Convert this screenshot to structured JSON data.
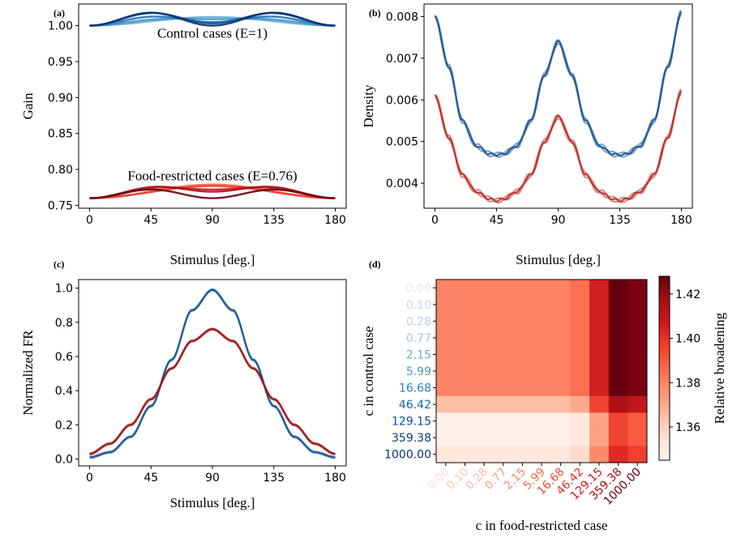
{
  "panel_labels": [
    "(a)",
    "(b)",
    "(c)",
    "(d)"
  ],
  "chart_data": [
    {
      "id": "a",
      "type": "line",
      "xlabel": "Stimulus [deg.]",
      "ylabel": "Gain",
      "xlim": [
        -8,
        188
      ],
      "ylim": [
        0.746,
        1.03
      ],
      "xticks": [
        0,
        45,
        90,
        135,
        180
      ],
      "yticks": [
        0.75,
        0.8,
        0.85,
        0.9,
        0.95,
        1.0
      ],
      "ytick_labels": [
        "0.75",
        "0.80",
        "0.85",
        "0.90",
        "0.95",
        "1.00"
      ],
      "annotations": [
        {
          "text": "Control cases (E=1)",
          "x": 90,
          "y": 0.983
        },
        {
          "text": "Food-restricted cases (E=0.76)",
          "x": 90,
          "y": 0.785
        }
      ],
      "grid": false,
      "groups": [
        {
          "base": 1.0,
          "colors": [
            "#6baed6",
            "#4292c6",
            "#2171b5",
            "#08519c",
            "#08306b"
          ],
          "curves": [
            [
              0.012,
              0.0
            ],
            [
              0.009,
              0.004
            ],
            [
              0.005,
              0.01
            ],
            [
              0.003,
              0.016
            ],
            [
              0.0,
              0.018
            ]
          ]
        },
        {
          "base": 0.76,
          "colors": [
            "#fb6a4a",
            "#ef3b2c",
            "#cb181d",
            "#a50f15",
            "#67000d"
          ],
          "curves": [
            [
              0.019,
              0.0
            ],
            [
              0.017,
              0.0
            ],
            [
              0.012,
              0.008
            ],
            [
              0.009,
              0.011
            ],
            [
              0.0,
              0.012
            ]
          ]
        }
      ]
    },
    {
      "id": "b",
      "type": "line",
      "xlabel": "Stimulus [deg.]",
      "ylabel": "Density",
      "xlim": [
        -8,
        188
      ],
      "ylim": [
        0.0034,
        0.0083
      ],
      "xticks": [
        0,
        45,
        90,
        135,
        180
      ],
      "yticks": [
        0.004,
        0.005,
        0.006,
        0.007,
        0.008
      ],
      "ytick_labels": [
        "0.004",
        "0.005",
        "0.006",
        "0.007",
        "0.008"
      ],
      "grid": false,
      "series": [
        {
          "group": "control",
          "color": "#1f5a96",
          "x": [
            0,
            10,
            20,
            30,
            40,
            45,
            50,
            60,
            70,
            80,
            90,
            100,
            110,
            120,
            130,
            135,
            140,
            150,
            160,
            170,
            180
          ],
          "values": [
            0.008,
            0.0068,
            0.0055,
            0.0049,
            0.0047,
            0.00468,
            0.0047,
            0.0049,
            0.0055,
            0.0066,
            0.0074,
            0.0066,
            0.0055,
            0.0049,
            0.0047,
            0.00468,
            0.0047,
            0.0049,
            0.0055,
            0.0068,
            0.0081
          ]
        },
        {
          "group": "food-restricted",
          "color": "#c0312a",
          "x": [
            0,
            10,
            20,
            30,
            40,
            45,
            50,
            60,
            70,
            80,
            90,
            100,
            110,
            120,
            130,
            135,
            140,
            150,
            160,
            170,
            180
          ],
          "values": [
            0.0061,
            0.0051,
            0.0042,
            0.0038,
            0.00362,
            0.00358,
            0.00362,
            0.0038,
            0.0042,
            0.005,
            0.0056,
            0.005,
            0.0042,
            0.0038,
            0.00362,
            0.00358,
            0.00362,
            0.0038,
            0.0042,
            0.0051,
            0.0062
          ]
        }
      ]
    },
    {
      "id": "c",
      "type": "line",
      "xlabel": "Stimulus [deg.]",
      "ylabel": "Normalized FR",
      "xlim": [
        -8,
        188
      ],
      "ylim": [
        -0.04,
        1.05
      ],
      "xticks": [
        0,
        45,
        90,
        135,
        180
      ],
      "yticks": [
        0.0,
        0.2,
        0.4,
        0.6,
        0.8,
        1.0
      ],
      "ytick_labels": [
        "0.0",
        "0.2",
        "0.4",
        "0.6",
        "0.8",
        "1.0"
      ],
      "grid": false,
      "series": [
        {
          "group": "control",
          "color": "#1f5a96",
          "x": [
            0,
            15,
            30,
            45,
            60,
            75,
            90,
            105,
            120,
            135,
            150,
            165,
            180
          ],
          "values": [
            0.01,
            0.04,
            0.13,
            0.31,
            0.58,
            0.87,
            0.99,
            0.87,
            0.58,
            0.31,
            0.13,
            0.04,
            0.01
          ]
        },
        {
          "group": "food-restricted",
          "color": "#9e1a1a",
          "x": [
            0,
            15,
            30,
            45,
            60,
            75,
            90,
            105,
            120,
            135,
            150,
            165,
            180
          ],
          "values": [
            0.03,
            0.09,
            0.2,
            0.35,
            0.53,
            0.69,
            0.76,
            0.69,
            0.53,
            0.35,
            0.2,
            0.09,
            0.03
          ]
        }
      ]
    },
    {
      "id": "d",
      "type": "heatmap",
      "xlabel": "c in food-restricted case",
      "ylabel": "c in control case",
      "row_labels": [
        "0.00",
        "0.10",
        "0.28",
        "0.77",
        "2.15",
        "5.99",
        "16.68",
        "46.42",
        "129.15",
        "359.38",
        "1000.00"
      ],
      "col_labels": [
        "0.00",
        "0.10",
        "0.28",
        "0.77",
        "2.15",
        "5.99",
        "16.68",
        "46.42",
        "129.15",
        "359.38",
        "1000.00"
      ],
      "row_label_colors": [
        "#deebf7",
        "#c6dbef",
        "#b2d2e8",
        "#9ecae1",
        "#6baed6",
        "#4a98c9",
        "#2e7ebc",
        "#1764ab",
        "#08519c",
        "#083d7f",
        "#08306b"
      ],
      "col_label_colors": [
        "#fee0d2",
        "#fdc9b4",
        "#fcbba1",
        "#fc9e80",
        "#fc8a6a",
        "#fb6a4a",
        "#f24a35",
        "#e32f27",
        "#cb181d",
        "#a50f15",
        "#67000d"
      ],
      "colorbar": {
        "label": "Relative broadening",
        "min": 1.345,
        "max": 1.428,
        "ticks": [
          1.36,
          1.38,
          1.4,
          1.42
        ],
        "tick_labels": [
          "1.36",
          "1.38",
          "1.40",
          "1.42"
        ]
      },
      "values": [
        [
          1.38,
          1.38,
          1.38,
          1.38,
          1.38,
          1.38,
          1.38,
          1.385,
          1.405,
          1.428,
          1.425
        ],
        [
          1.38,
          1.38,
          1.38,
          1.38,
          1.38,
          1.38,
          1.38,
          1.385,
          1.405,
          1.428,
          1.425
        ],
        [
          1.38,
          1.38,
          1.38,
          1.38,
          1.38,
          1.38,
          1.38,
          1.385,
          1.405,
          1.428,
          1.425
        ],
        [
          1.38,
          1.38,
          1.38,
          1.38,
          1.38,
          1.38,
          1.38,
          1.385,
          1.405,
          1.428,
          1.425
        ],
        [
          1.38,
          1.38,
          1.38,
          1.38,
          1.38,
          1.38,
          1.38,
          1.385,
          1.405,
          1.428,
          1.425
        ],
        [
          1.38,
          1.38,
          1.38,
          1.38,
          1.38,
          1.38,
          1.38,
          1.385,
          1.405,
          1.428,
          1.425
        ],
        [
          1.38,
          1.38,
          1.38,
          1.38,
          1.38,
          1.38,
          1.38,
          1.385,
          1.405,
          1.428,
          1.425
        ],
        [
          1.365,
          1.365,
          1.365,
          1.365,
          1.365,
          1.365,
          1.365,
          1.37,
          1.395,
          1.415,
          1.41
        ],
        [
          1.347,
          1.347,
          1.347,
          1.347,
          1.347,
          1.347,
          1.347,
          1.352,
          1.372,
          1.395,
          1.39
        ],
        [
          1.347,
          1.347,
          1.347,
          1.347,
          1.347,
          1.347,
          1.347,
          1.352,
          1.372,
          1.395,
          1.39
        ],
        [
          1.352,
          1.352,
          1.352,
          1.352,
          1.352,
          1.352,
          1.352,
          1.357,
          1.378,
          1.402,
          1.396
        ]
      ]
    }
  ]
}
